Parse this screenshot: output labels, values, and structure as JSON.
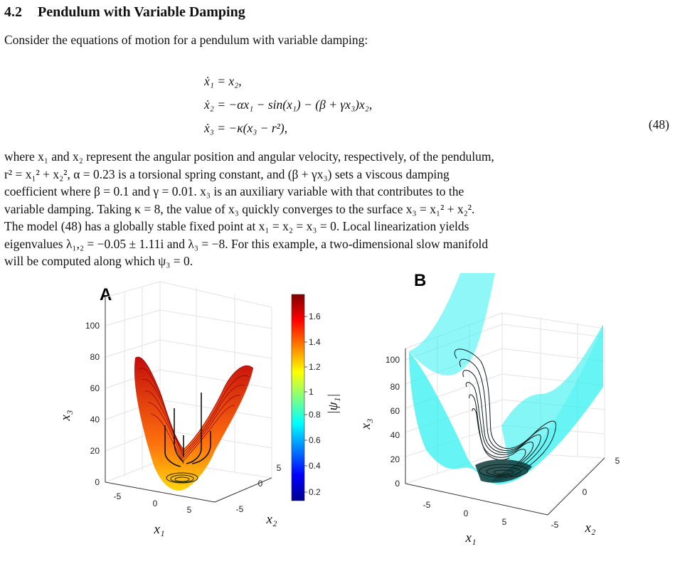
{
  "section": {
    "number": "4.2",
    "title": "Pendulum with Variable Damping"
  },
  "intro": "Consider the equations of motion for a pendulum with variable damping:",
  "equations": [
    "ẋ₁ = x₂,",
    "ẋ₂ = −αx₁ − sin(x₁) − (β + γx₃)x₂,",
    "ẋ₃ = −κ(x₃ − r²),"
  ],
  "equation_number": "(48)",
  "paragraph_lines": [
    "where x₁ and x₂ represent the angular position and angular velocity, respectively, of the pendulum,",
    "r² = x₁² + x₂², α = 0.23 is a torsional spring constant, and (β + γx₃) sets a viscous damping",
    "coefficient where β = 0.1 and γ = 0.01. x₃ is an auxiliary variable with that contributes to the",
    "variable damping. Taking κ = 8, the value of x₃ quickly converges to the surface x₃ = x₁² + x₂².",
    "The model (48) has a globally stable fixed point at x₁ = x₂ = x₃ = 0. Local linearization yields",
    "eigenvalues λ₁,₂ = −0.05 ± 1.11i and λ₃ = −8. For this example, a two-dimensional slow manifold",
    "will be computed along which ψ₃ = 0."
  ],
  "figure": {
    "panel_a": {
      "label": "A",
      "z_ticks": [
        "0",
        "20",
        "40",
        "60",
        "80",
        "100"
      ],
      "x1_ticks": [
        "-5",
        "0",
        "5"
      ],
      "x2_ticks": [
        "5",
        "0",
        "-5"
      ],
      "xlabel": "x₁",
      "ylabel": "x₂",
      "zlabel": "x₃",
      "colorbar": {
        "label": "|ψ₁|",
        "ticks": [
          "0.2",
          "0.4",
          "0.6",
          "0.8",
          "1",
          "1.2",
          "1.4",
          "1.6"
        ]
      }
    },
    "panel_b": {
      "label": "B",
      "z_ticks": [
        "0",
        "20",
        "40",
        "60",
        "80",
        "100"
      ],
      "x1_ticks": [
        "-5",
        "0",
        "5"
      ],
      "x2_ticks": [
        "5",
        "0",
        "-5"
      ],
      "xlabel": "x₁",
      "ylabel": "x₂",
      "zlabel": "x₃",
      "surface_color": "#33f0f0"
    }
  }
}
